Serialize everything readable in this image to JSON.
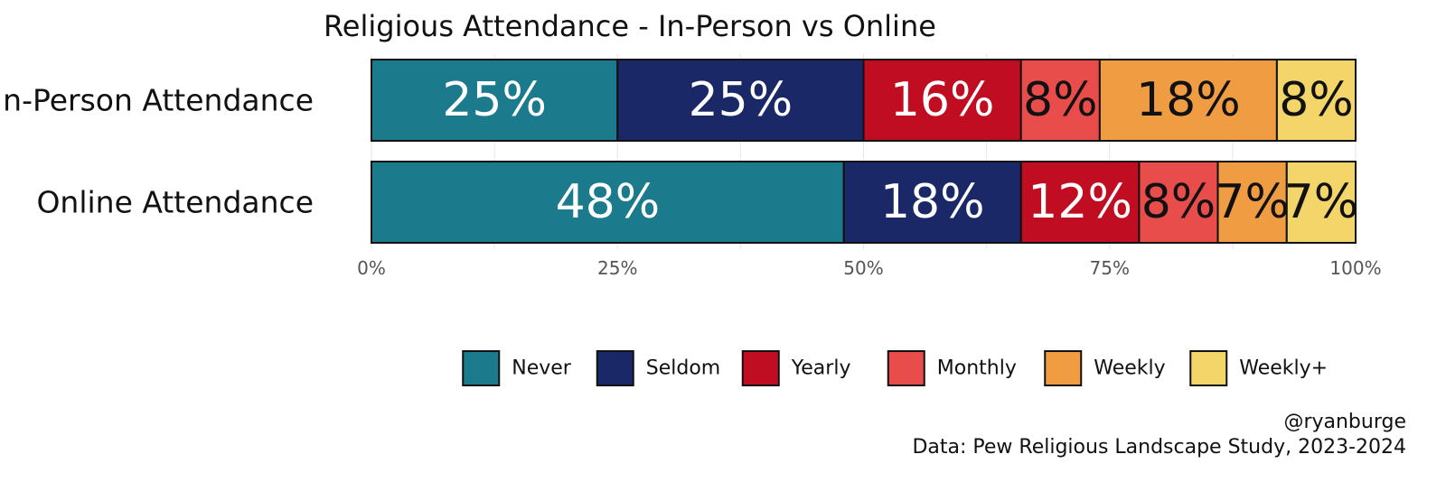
{
  "chart_data": {
    "type": "bar",
    "orientation": "horizontal",
    "stacked": true,
    "title": "Religious Attendance - In-Person vs Online",
    "categories": [
      "In-Person Attendance",
      "Online Attendance"
    ],
    "series": [
      {
        "name": "Never",
        "values": [
          25,
          48
        ],
        "labels": [
          "25%",
          "48%"
        ],
        "color": "#1b7a8c",
        "label_color": "#ffffff"
      },
      {
        "name": "Seldom",
        "values": [
          25,
          18
        ],
        "labels": [
          "25%",
          "18%"
        ],
        "color": "#1a2868",
        "label_color": "#ffffff"
      },
      {
        "name": "Yearly",
        "values": [
          16,
          12
        ],
        "labels": [
          "16%",
          "12%"
        ],
        "color": "#c00d22",
        "label_color": "#ffffff"
      },
      {
        "name": "Monthly",
        "values": [
          8,
          8
        ],
        "labels": [
          "8%",
          "8%"
        ],
        "color": "#e84c4b",
        "label_color": "#111111"
      },
      {
        "name": "Weekly",
        "values": [
          18,
          7
        ],
        "labels": [
          "18%",
          "7%"
        ],
        "color": "#f09c42",
        "label_color": "#111111"
      },
      {
        "name": "Weekly+",
        "values": [
          8,
          7
        ],
        "labels": [
          "8%",
          "7%"
        ],
        "color": "#f3d56a",
        "label_color": "#111111"
      }
    ],
    "xlim": [
      0,
      100
    ],
    "x_ticks": [
      0,
      25,
      50,
      75,
      100
    ],
    "x_tick_labels": [
      "0%",
      "25%",
      "50%",
      "75%",
      "100%"
    ],
    "grid": true,
    "legend_position": "bottom"
  },
  "caption": {
    "handle": "@ryanburge",
    "source": "Data: Pew Religious Landscape Study, 2023-2024"
  }
}
